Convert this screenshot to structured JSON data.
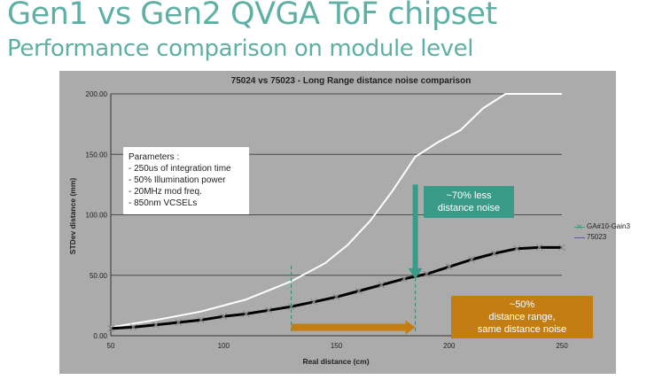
{
  "slide": {
    "title": "Gen1 vs Gen2 QVGA ToF chipset",
    "subtitle": "Performance comparison on module level"
  },
  "parameters": {
    "heading": "Parameters :",
    "items": [
      "- 250us of integration time",
      "- 50% Illumination power",
      "- 20MHz mod freq.",
      "- 850nm VCSELs"
    ]
  },
  "callouts": {
    "noise": {
      "line1": "~70% less",
      "line2": "distance noise"
    },
    "range": {
      "line1": "~50%",
      "line2": "distance range,",
      "line3": "same distance noise"
    }
  },
  "colors": {
    "title": "#5fb0a4",
    "gen2_series": "#000000",
    "gen1_series": "#ffffff",
    "teal_arrow": "#3a9a88",
    "orange_arrow": "#c37d12",
    "plot_background": "#ababab"
  },
  "chart_data": {
    "type": "line",
    "title": "75024 vs 75023 - Long Range distance noise comparison",
    "xlabel": "Real distance (cm)",
    "ylabel": "STDev distance (mm)",
    "xlim": [
      50,
      250
    ],
    "ylim": [
      0,
      200
    ],
    "x_ticks": [
      "50",
      "100",
      "150",
      "200",
      "250"
    ],
    "y_ticks": [
      "0.00",
      "50.00",
      "100.00",
      "150.00",
      "200.00"
    ],
    "grid": true,
    "legend_position": "right",
    "series": [
      {
        "name": "GA#10-Gain3",
        "marker": "x",
        "points": [
          [
            50,
            6
          ],
          [
            60,
            7
          ],
          [
            70,
            9
          ],
          [
            80,
            11
          ],
          [
            90,
            13
          ],
          [
            100,
            16
          ],
          [
            110,
            18
          ],
          [
            120,
            21
          ],
          [
            130,
            24
          ],
          [
            140,
            28
          ],
          [
            150,
            32
          ],
          [
            160,
            37
          ],
          [
            170,
            42
          ],
          [
            180,
            47
          ],
          [
            190,
            51
          ],
          [
            200,
            57
          ],
          [
            210,
            63
          ],
          [
            220,
            68
          ],
          [
            230,
            72
          ],
          [
            240,
            73
          ],
          [
            250,
            73
          ]
        ]
      },
      {
        "name": "75023",
        "marker": "",
        "points": [
          [
            50,
            7
          ],
          [
            70,
            13
          ],
          [
            90,
            20
          ],
          [
            110,
            30
          ],
          [
            130,
            45
          ],
          [
            145,
            60
          ],
          [
            155,
            75
          ],
          [
            165,
            95
          ],
          [
            175,
            120
          ],
          [
            185,
            148
          ],
          [
            195,
            160
          ],
          [
            205,
            170
          ],
          [
            215,
            188
          ],
          [
            225,
            200
          ],
          [
            235,
            200
          ],
          [
            250,
            200
          ]
        ]
      }
    ],
    "annotations": [
      {
        "type": "down-arrow",
        "x": 185,
        "y_from": 125,
        "y_to": 47
      },
      {
        "type": "right-arrow",
        "x_from": 130,
        "x_to": 185,
        "y": 4
      },
      {
        "type": "dashed-vline",
        "x": 130
      },
      {
        "type": "dashed-vline",
        "x": 185
      }
    ]
  }
}
